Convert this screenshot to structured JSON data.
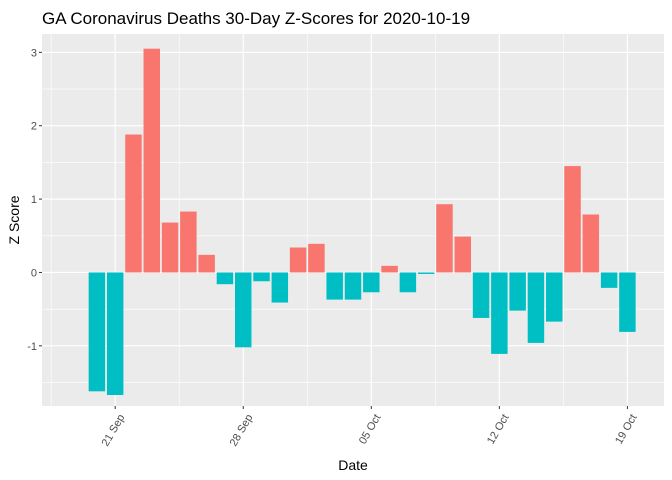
{
  "chart_data": {
    "type": "bar",
    "title": "GA Coronavirus Deaths 30-Day Z-Scores for 2020-10-19",
    "xlabel": "Date",
    "ylabel": "Z Score",
    "ylim": [
      -1.82,
      3.25
    ],
    "y_ticks": [
      -1,
      0,
      1,
      2,
      3
    ],
    "x_ticks": [
      {
        "date": "2020-09-21",
        "label": "21 Sep"
      },
      {
        "date": "2020-09-28",
        "label": "28 Sep"
      },
      {
        "date": "2020-10-05",
        "label": "05 Oct"
      },
      {
        "date": "2020-10-12",
        "label": "12 Oct"
      },
      {
        "date": "2020-10-19",
        "label": "19 Oct"
      }
    ],
    "x_range": [
      "2020-09-17",
      "2020-10-21"
    ],
    "legend": "none",
    "colors": {
      "positive": "#F8766D",
      "negative": "#00BFC4",
      "panel": "#EBEBEB",
      "grid": "#FFFFFF"
    },
    "dates": [
      "2020-09-20",
      "2020-09-21",
      "2020-09-22",
      "2020-09-23",
      "2020-09-24",
      "2020-09-25",
      "2020-09-26",
      "2020-09-27",
      "2020-09-28",
      "2020-09-29",
      "2020-09-30",
      "2020-10-01",
      "2020-10-02",
      "2020-10-03",
      "2020-10-04",
      "2020-10-05",
      "2020-10-06",
      "2020-10-07",
      "2020-10-08",
      "2020-10-09",
      "2020-10-10",
      "2020-10-11",
      "2020-10-12",
      "2020-10-13",
      "2020-10-14",
      "2020-10-15",
      "2020-10-16",
      "2020-10-17",
      "2020-10-18",
      "2020-10-19"
    ],
    "values": [
      -1.62,
      -1.67,
      1.88,
      3.05,
      0.68,
      0.83,
      0.24,
      -0.16,
      -1.02,
      -0.12,
      -0.41,
      0.34,
      0.39,
      -0.37,
      -0.37,
      -0.27,
      0.09,
      -0.27,
      -0.02,
      0.93,
      0.49,
      -0.62,
      -1.11,
      -0.52,
      -0.96,
      -0.67,
      1.45,
      0.79,
      -0.21,
      -0.81
    ]
  }
}
